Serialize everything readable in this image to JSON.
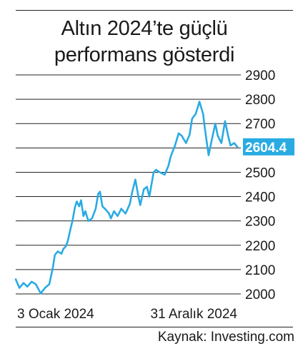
{
  "header": {
    "title_line1": "Altın 2024’te güçlü",
    "title_line2": "performans gösterdi"
  },
  "footer": {
    "source": "Kaynak: Investing.com"
  },
  "colors": {
    "line": "#29abe2",
    "callout_bg": "#29abe2",
    "callout_text": "#ffffff",
    "grid": "#222222",
    "text": "#1a1a1a"
  },
  "chart_data": {
    "type": "line",
    "title": "Altın 2024’te güçlü performans gösterdi",
    "xlabel": "",
    "ylabel": "",
    "ylim": [
      2000,
      2900
    ],
    "y_ticks": [
      2000,
      2100,
      2200,
      2300,
      2400,
      2500,
      2600,
      2700,
      2800,
      2900
    ],
    "x_tick_labels": [
      {
        "label": "3 Ocak 2024",
        "date": "2024-01-03"
      },
      {
        "label": "31 Aralık 2024",
        "date": "2024-12-31"
      }
    ],
    "last_value_label": "2604.4",
    "grid": "horizontal",
    "series": [
      {
        "x": [
          "2024-01-03",
          "2024-01-09",
          "2024-01-16",
          "2024-01-22",
          "2024-01-29",
          "2024-02-05",
          "2024-02-13",
          "2024-02-20",
          "2024-02-27",
          "2024-03-04",
          "2024-03-07",
          "2024-03-12",
          "2024-03-18",
          "2024-03-21",
          "2024-03-25",
          "2024-03-28",
          "2024-04-02",
          "2024-04-05",
          "2024-04-09",
          "2024-04-12",
          "2024-04-16",
          "2024-04-19",
          "2024-04-23",
          "2024-04-26",
          "2024-05-01",
          "2024-05-07",
          "2024-05-13",
          "2024-05-17",
          "2024-05-20",
          "2024-05-24",
          "2024-05-30",
          "2024-06-04",
          "2024-06-07",
          "2024-06-12",
          "2024-06-18",
          "2024-06-24",
          "2024-07-01",
          "2024-07-08",
          "2024-07-12",
          "2024-07-17",
          "2024-07-22",
          "2024-07-25",
          "2024-07-31",
          "2024-08-05",
          "2024-08-09",
          "2024-08-16",
          "2024-08-20",
          "2024-08-26",
          "2024-09-03",
          "2024-09-09",
          "2024-09-13",
          "2024-09-20",
          "2024-09-26",
          "2024-10-01",
          "2024-10-08",
          "2024-10-14",
          "2024-10-18",
          "2024-10-24",
          "2024-10-30",
          "2024-11-05",
          "2024-11-08",
          "2024-11-14",
          "2024-11-19",
          "2024-11-25",
          "2024-11-29",
          "2024-12-05",
          "2024-12-11",
          "2024-12-16",
          "2024-12-20",
          "2024-12-26",
          "2024-12-31"
        ],
        "y": [
          2060,
          2025,
          2045,
          2030,
          2050,
          2040,
          2002,
          2025,
          2040,
          2110,
          2160,
          2175,
          2165,
          2185,
          2195,
          2215,
          2270,
          2300,
          2355,
          2380,
          2360,
          2385,
          2320,
          2340,
          2300,
          2310,
          2350,
          2410,
          2420,
          2360,
          2345,
          2330,
          2310,
          2340,
          2320,
          2350,
          2330,
          2370,
          2420,
          2470,
          2400,
          2365,
          2430,
          2440,
          2400,
          2500,
          2510,
          2500,
          2490,
          2525,
          2565,
          2610,
          2660,
          2650,
          2620,
          2655,
          2720,
          2740,
          2790,
          2740,
          2680,
          2570,
          2630,
          2700,
          2650,
          2620,
          2710,
          2650,
          2610,
          2620,
          2604.4
        ]
      }
    ]
  }
}
